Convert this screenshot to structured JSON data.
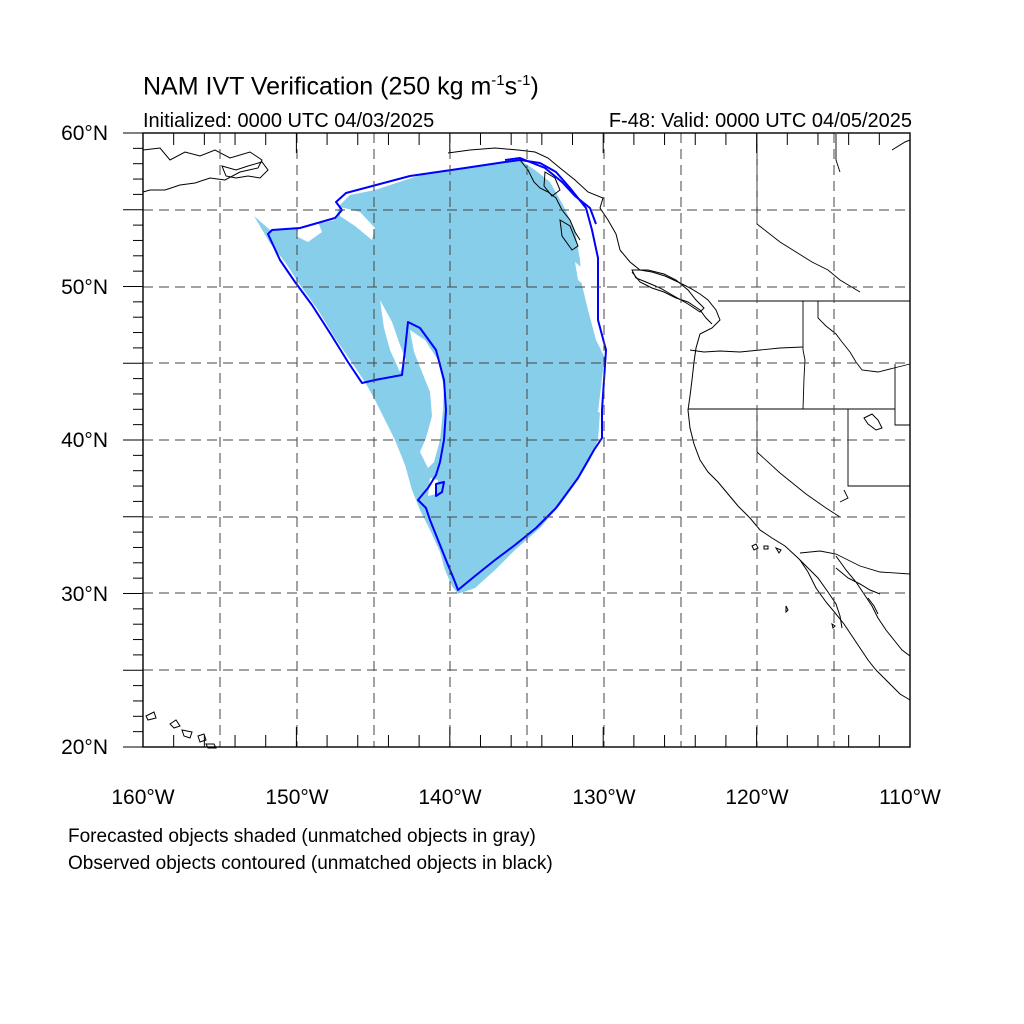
{
  "title": {
    "main": "NAM IVT Verification (250 kg m",
    "sup1": "-1",
    "mid": "s",
    "sup2": "-1",
    "end": ")"
  },
  "subtitle": {
    "initialized": "Initialized: 0000 UTC 04/03/2025",
    "valid": "F-48: Valid: 0000 UTC 04/05/2025"
  },
  "axes": {
    "lat_labels": [
      "60°N",
      "50°N",
      "40°N",
      "30°N",
      "20°N"
    ],
    "lon_labels": [
      "160°W",
      "150°W",
      "140°W",
      "130°W",
      "120°W",
      "110°W"
    ],
    "lat_range": [
      20,
      60
    ],
    "lon_range": [
      -160,
      -110
    ],
    "grid": true
  },
  "legend": {
    "line1": "Forecasted objects shaded (unmatched objects in gray)",
    "line2": "Observed objects contoured (unmatched objects in black)"
  },
  "colors": {
    "forecast_fill": "#87ceeb",
    "observed_contour": "#0000ff",
    "coastline": "#000000",
    "grid": "#555555"
  }
}
